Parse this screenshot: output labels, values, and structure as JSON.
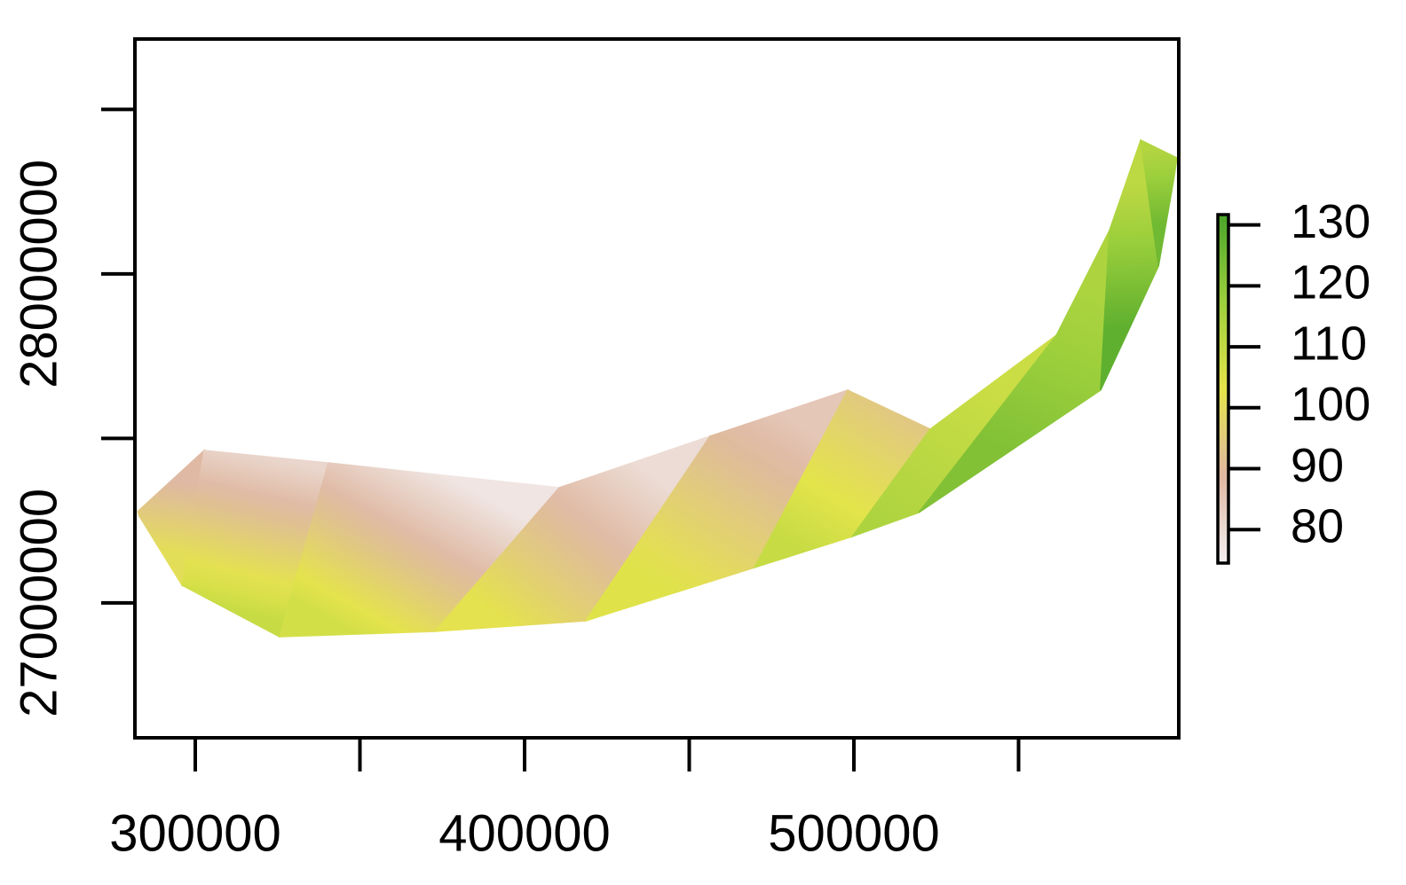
{
  "chart_data": {
    "type": "raster",
    "xlim": [
      281670,
      598650
    ],
    "ylim": [
      26590000,
      28714000
    ],
    "xticks": [
      300000,
      400000,
      500000
    ],
    "xminor": [
      350000,
      450000,
      550000
    ],
    "yticks": [
      27000000,
      28000000
    ],
    "yminor": [
      27500000,
      28500000
    ],
    "zlim": [
      74.5,
      131.7
    ],
    "zticks": [
      80,
      90,
      100,
      110,
      120,
      130
    ],
    "colors": [
      "#f3eff0",
      "#dfb8a2",
      "#e4e44a",
      "#9ccf3c",
      "#4aa52a"
    ],
    "band": {
      "x_top": [
        282500,
        302700,
        340400,
        410500,
        456300,
        498100,
        523200,
        561500,
        577600,
        587100,
        598100
      ],
      "y_top": [
        27277400,
        27463300,
        27425600,
        27350100,
        27506500,
        27646600,
        27528000,
        27813700,
        28131800,
        28406700,
        28352800
      ],
      "x_bottom": [
        283000,
        296000,
        325600,
        372800,
        418600,
        469800,
        499500,
        519700,
        574900,
        592500,
        597000
      ],
      "y_bottom": [
        27263900,
        27053600,
        26897300,
        26913500,
        26945800,
        27107500,
        27201900,
        27274700,
        27646600,
        28024000,
        28280000
      ],
      "z_top": [
        92,
        85,
        77,
        77,
        82,
        88,
        100,
        116,
        112,
        110,
        116
      ],
      "z_bottom": [
        94,
        108,
        110,
        103,
        102,
        106,
        112,
        116,
        128,
        128,
        122
      ]
    }
  }
}
